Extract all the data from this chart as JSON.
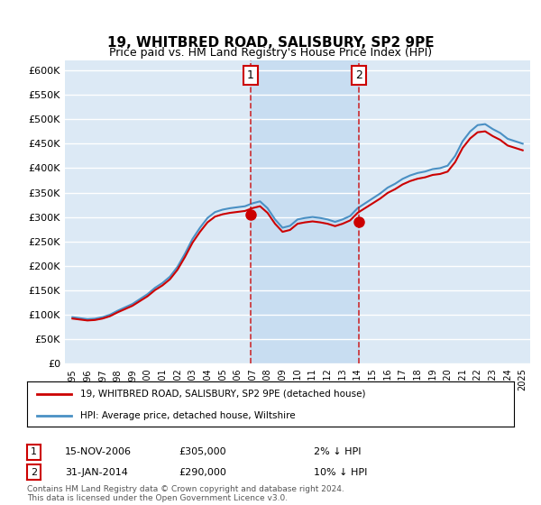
{
  "title": "19, WHITBRED ROAD, SALISBURY, SP2 9PE",
  "subtitle": "Price paid vs. HM Land Registry's House Price Index (HPI)",
  "legend_line1": "19, WHITBRED ROAD, SALISBURY, SP2 9PE (detached house)",
  "legend_line2": "HPI: Average price, detached house, Wiltshire",
  "sale1_label": "1",
  "sale1_date": "15-NOV-2006",
  "sale1_price": "£305,000",
  "sale1_hpi": "2% ↓ HPI",
  "sale1_x": 2006.877,
  "sale1_y": 305000,
  "sale2_label": "2",
  "sale2_date": "31-JAN-2014",
  "sale2_price": "£290,000",
  "sale2_hpi": "10% ↓ HPI",
  "sale2_x": 2014.083,
  "sale2_y": 290000,
  "footer": "Contains HM Land Registry data © Crown copyright and database right 2024.\nThis data is licensed under the Open Government Licence v3.0.",
  "ylim": [
    0,
    620000
  ],
  "yticks": [
    0,
    50000,
    100000,
    150000,
    200000,
    250000,
    300000,
    350000,
    400000,
    450000,
    500000,
    550000,
    600000
  ],
  "xlim": [
    1994.5,
    2025.5
  ],
  "background_color": "#dce9f5",
  "plot_bg": "#dce9f5",
  "shade_color": "#c0d8f0",
  "red_color": "#cc0000",
  "blue_color": "#4a90c4",
  "grid_color": "#ffffff"
}
